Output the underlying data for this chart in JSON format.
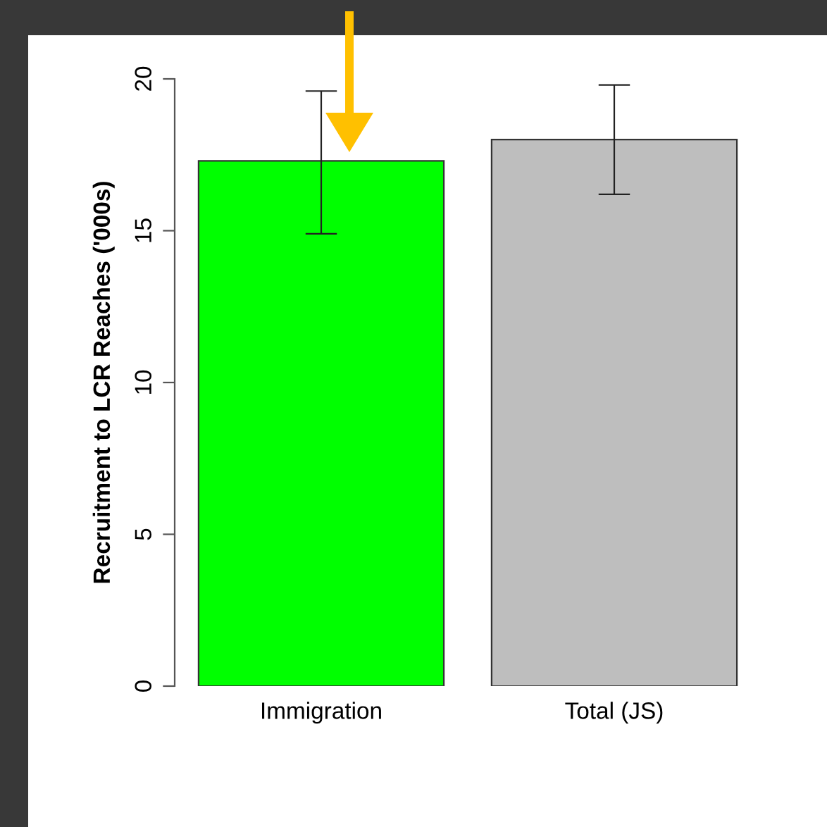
{
  "chart_data": {
    "type": "bar",
    "ylabel": "Recruitment to LCR Reaches ('000s)",
    "categories": [
      "Immigration",
      "Total (JS)"
    ],
    "values": [
      17.3,
      18.0
    ],
    "colors": [
      "#00ff00",
      "#bebebe"
    ],
    "errors": [
      [
        14.9,
        19.6
      ],
      [
        16.2,
        19.8
      ]
    ],
    "ylim": [
      0,
      20
    ],
    "yticks": [
      0,
      5,
      10,
      15,
      20
    ],
    "grid": false,
    "legend": false
  }
}
